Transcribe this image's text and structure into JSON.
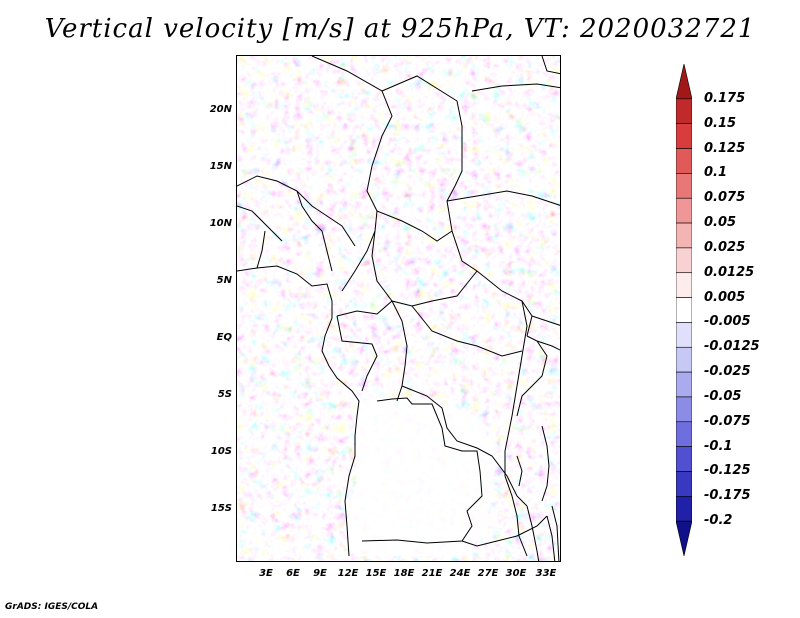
{
  "title": "Vertical velocity [m/s] at 925hPa, VT: 2020032721",
  "footer": "GrADS: IGES/COLA",
  "map": {
    "variable": "Vertical velocity",
    "units": "m/s",
    "level": "925hPa",
    "valid_time": "2020032721",
    "lat_labels": [
      "20N",
      "15N",
      "10N",
      "5N",
      "EQ",
      "5S",
      "10S",
      "15S"
    ],
    "lon_labels": [
      "3E",
      "6E",
      "9E",
      "12E",
      "15E",
      "18E",
      "21E",
      "24E",
      "27E",
      "30E",
      "33E"
    ]
  },
  "colorbar": {
    "labels": [
      "0.175",
      "0.15",
      "0.125",
      "0.1",
      "0.075",
      "0.05",
      "0.025",
      "0.0125",
      "0.005",
      "-0.005",
      "-0.0125",
      "-0.025",
      "-0.05",
      "-0.075",
      "-0.1",
      "-0.125",
      "-0.175",
      "-0.2"
    ],
    "colors": [
      "#a01818",
      "#c02a2a",
      "#d83c3c",
      "#e05a5a",
      "#e87878",
      "#f09696",
      "#f4b4b4",
      "#f8d2d2",
      "#fcecec",
      "#ffffff",
      "#e0e0fa",
      "#c8c8f4",
      "#aaaaee",
      "#8c8ce6",
      "#6e6ede",
      "#5050d0",
      "#3838c0",
      "#2020a8",
      "#10108a"
    ]
  }
}
